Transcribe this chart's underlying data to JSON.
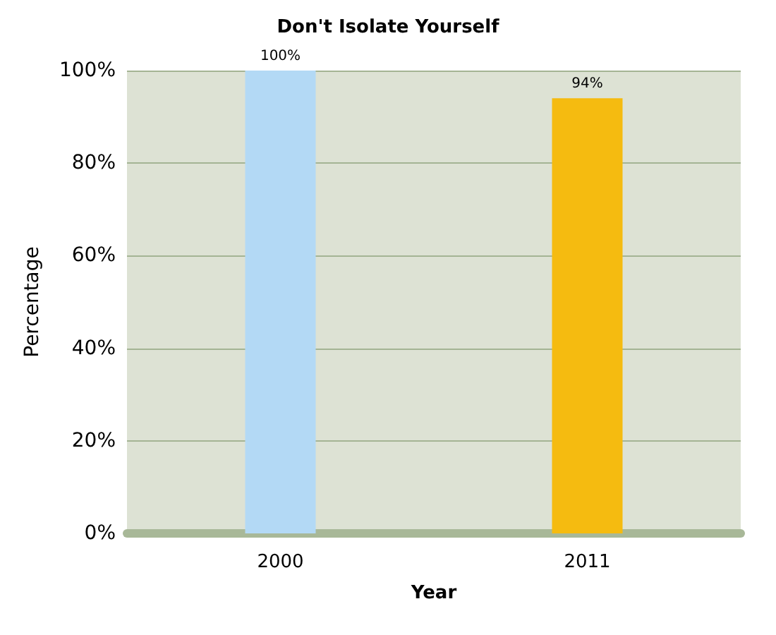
{
  "chart_data": {
    "type": "bar",
    "title": "Don't Isolate Yourself",
    "xlabel": "Year",
    "ylabel": "Percentage",
    "categories": [
      "2000",
      "2011"
    ],
    "values": [
      100,
      94
    ],
    "colors": [
      "#b3d9f5",
      "#f5bb10"
    ],
    "value_labels": [
      "100%",
      "94%"
    ],
    "ylim": [
      0,
      100
    ],
    "yticks": [
      {
        "value": 0,
        "label": "0%"
      },
      {
        "value": 20,
        "label": "20%"
      },
      {
        "value": 40,
        "label": "40%"
      },
      {
        "value": 60,
        "label": "60%"
      },
      {
        "value": 80,
        "label": "80%"
      },
      {
        "value": 100,
        "label": "100%"
      }
    ],
    "grid": "y"
  }
}
